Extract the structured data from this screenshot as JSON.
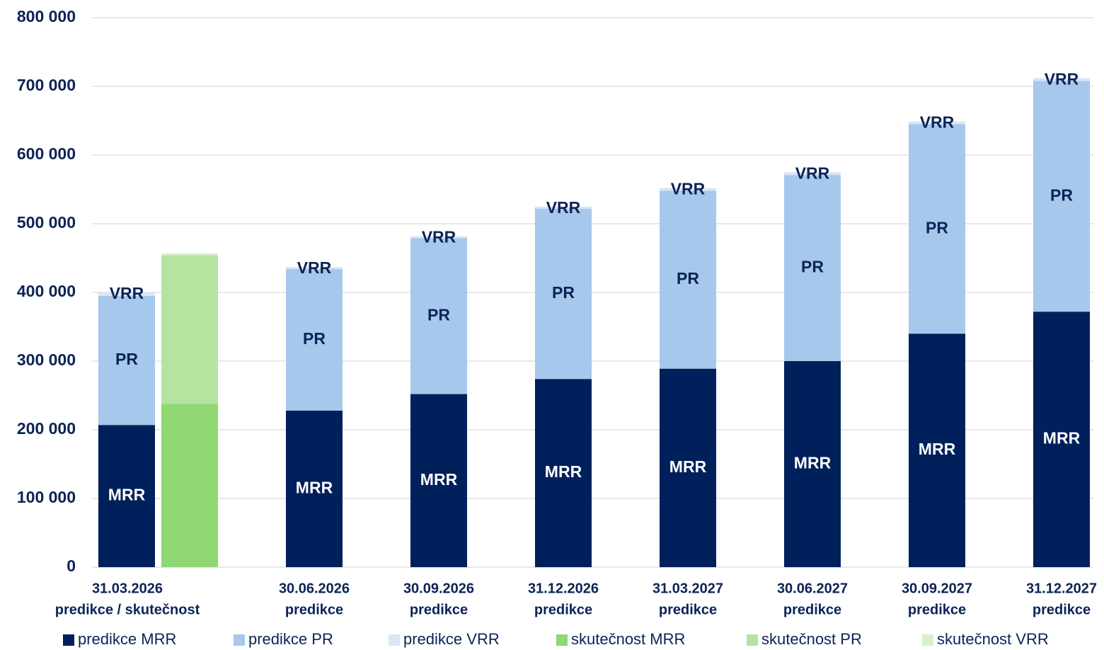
{
  "chart_data": {
    "type": "stacked_bar",
    "categories": [
      [
        "31.03.2026",
        "predikce / skutečnost"
      ],
      [
        "30.06.2026",
        "predikce"
      ],
      [
        "30.09.2026",
        "predikce"
      ],
      [
        "31.12.2026",
        "predikce"
      ],
      [
        "31.03.2027",
        "predikce"
      ],
      [
        "30.06.2027",
        "predikce"
      ],
      [
        "30.09.2027",
        "predikce"
      ],
      [
        "31.12.2027",
        "predikce"
      ]
    ],
    "series": [
      {
        "name": "predikce MRR",
        "label": "MRR",
        "stack": "predikce",
        "color": "#00205b",
        "values": [
          207000,
          228000,
          252000,
          274000,
          289000,
          300000,
          340000,
          372000
        ]
      },
      {
        "name": "predikce PR",
        "label": "PR",
        "stack": "predikce",
        "color": "#a6c8ec",
        "values": [
          188000,
          206000,
          227000,
          248000,
          259000,
          271000,
          305000,
          336000
        ]
      },
      {
        "name": "predikce VRR",
        "label": "VRR",
        "stack": "predikce",
        "color": "#d9e6f5",
        "values": [
          5000,
          3000,
          3000,
          3000,
          4000,
          4000,
          4000,
          4000
        ]
      },
      {
        "name": "skutečnost MRR",
        "stack": "skutecnost",
        "color": "#8fd873",
        "values": [
          238000,
          null,
          null,
          null,
          null,
          null,
          null,
          null
        ]
      },
      {
        "name": "skutečnost PR",
        "stack": "skutecnost",
        "color": "#b5e3a0",
        "values": [
          216000,
          null,
          null,
          null,
          null,
          null,
          null,
          null
        ]
      },
      {
        "name": "skutečnost VRR",
        "stack": "skutecnost",
        "color": "#d8f0cc",
        "values": [
          3000,
          null,
          null,
          null,
          null,
          null,
          null,
          null
        ]
      }
    ],
    "ylim": [
      0,
      800000
    ],
    "yticks": [
      0,
      {
        "value": 100000,
        "label": "100 000"
      },
      {
        "value": 200000,
        "label": "200 000"
      },
      {
        "value": 300000,
        "label": "300 000"
      },
      {
        "value": 400000,
        "label": "400 000"
      },
      {
        "value": 500000,
        "label": "500 000"
      },
      {
        "value": 600000,
        "label": "600 000"
      },
      {
        "value": 700000,
        "label": "700 000"
      },
      {
        "value": 800000,
        "label": "800 000"
      }
    ],
    "grid": true,
    "legend": "bottom"
  }
}
